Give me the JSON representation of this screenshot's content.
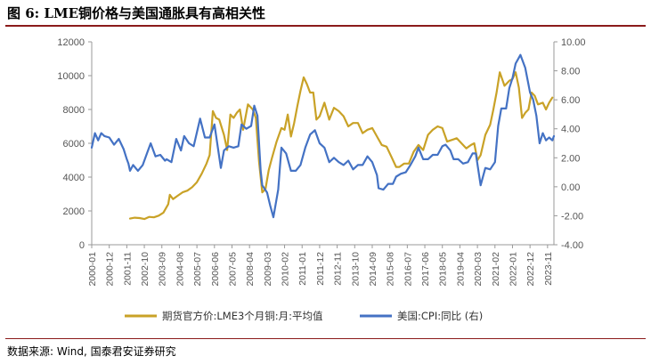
{
  "figure": {
    "title": "图 6:  LME铜价格与美国通胀具有高相关性",
    "source": "数据来源:  Wind, 国泰君安证券研究"
  },
  "chart_data": {
    "type": "line",
    "title": "",
    "x_ticks": [
      "2000-01",
      "2000-12",
      "2001-11",
      "2002-10",
      "2003-09",
      "2004-08",
      "2005-07",
      "2006-06",
      "2007-05",
      "2008-04",
      "2009-03",
      "2010-02",
      "2011-01",
      "2011-12",
      "2012-11",
      "2013-10",
      "2014-09",
      "2015-08",
      "2016-07",
      "2017-06",
      "2018-05",
      "2019-04",
      "2020-03",
      "2021-02",
      "2022-01",
      "2022-12",
      "2023-11"
    ],
    "y_left": {
      "min": 0,
      "max": 12000,
      "ticks": [
        0,
        2000,
        4000,
        6000,
        8000,
        10000,
        12000
      ],
      "tick_labels": [
        "0",
        "2000",
        "4000",
        "6000",
        "8000",
        "10000",
        "12000"
      ]
    },
    "y_right": {
      "min": -4,
      "max": 10,
      "ticks": [
        -4,
        -2,
        0,
        2,
        4,
        6,
        8,
        10
      ],
      "tick_labels": [
        "-4.00",
        "-2.00",
        "0.00",
        "2.00",
        "4.00",
        "6.00",
        "8.00",
        "10.00"
      ]
    },
    "grid": false,
    "legend_position": "bottom",
    "series": [
      {
        "name": "期货官方价:LME3个月铜:月:平均值",
        "axis": "left",
        "color": "#c9a227",
        "points": [
          [
            "2002-01",
            1550
          ],
          [
            "2002-04",
            1600
          ],
          [
            "2002-07",
            1580
          ],
          [
            "2002-10",
            1520
          ],
          [
            "2003-01",
            1650
          ],
          [
            "2003-04",
            1620
          ],
          [
            "2003-07",
            1720
          ],
          [
            "2003-10",
            1900
          ],
          [
            "2004-01",
            2400
          ],
          [
            "2004-02",
            2950
          ],
          [
            "2004-04",
            2700
          ],
          [
            "2004-07",
            2900
          ],
          [
            "2004-10",
            3100
          ],
          [
            "2005-01",
            3200
          ],
          [
            "2005-04",
            3400
          ],
          [
            "2005-07",
            3700
          ],
          [
            "2005-10",
            4200
          ],
          [
            "2006-01",
            4800
          ],
          [
            "2006-03",
            5300
          ],
          [
            "2006-05",
            7900
          ],
          [
            "2006-07",
            7500
          ],
          [
            "2006-09",
            7400
          ],
          [
            "2006-12",
            6500
          ],
          [
            "2007-02",
            5600
          ],
          [
            "2007-04",
            7700
          ],
          [
            "2007-06",
            7500
          ],
          [
            "2007-08",
            7800
          ],
          [
            "2007-10",
            8000
          ],
          [
            "2007-12",
            6800
          ],
          [
            "2008-03",
            8300
          ],
          [
            "2008-06",
            8000
          ],
          [
            "2008-08",
            7500
          ],
          [
            "2008-10",
            4900
          ],
          [
            "2008-12",
            3100
          ],
          [
            "2009-02",
            3300
          ],
          [
            "2009-04",
            4400
          ],
          [
            "2009-06",
            5100
          ],
          [
            "2009-09",
            6100
          ],
          [
            "2009-12",
            6900
          ],
          [
            "2010-02",
            6800
          ],
          [
            "2010-04",
            7700
          ],
          [
            "2010-06",
            6400
          ],
          [
            "2010-08",
            7200
          ],
          [
            "2010-10",
            8200
          ],
          [
            "2010-12",
            9100
          ],
          [
            "2011-02",
            9900
          ],
          [
            "2011-04",
            9500
          ],
          [
            "2011-06",
            9000
          ],
          [
            "2011-08",
            9000
          ],
          [
            "2011-10",
            7400
          ],
          [
            "2011-12",
            7600
          ],
          [
            "2012-03",
            8400
          ],
          [
            "2012-06",
            7400
          ],
          [
            "2012-09",
            8100
          ],
          [
            "2012-12",
            7900
          ],
          [
            "2013-03",
            7600
          ],
          [
            "2013-06",
            7000
          ],
          [
            "2013-09",
            7200
          ],
          [
            "2013-12",
            7200
          ],
          [
            "2014-03",
            6600
          ],
          [
            "2014-06",
            6800
          ],
          [
            "2014-09",
            6900
          ],
          [
            "2014-12",
            6400
          ],
          [
            "2015-03",
            5900
          ],
          [
            "2015-06",
            5800
          ],
          [
            "2015-09",
            5200
          ],
          [
            "2015-12",
            4600
          ],
          [
            "2016-02",
            4600
          ],
          [
            "2016-05",
            4800
          ],
          [
            "2016-08",
            4800
          ],
          [
            "2016-11",
            5500
          ],
          [
            "2017-02",
            5900
          ],
          [
            "2017-05",
            5600
          ],
          [
            "2017-08",
            6500
          ],
          [
            "2017-11",
            6800
          ],
          [
            "2018-02",
            7000
          ],
          [
            "2018-05",
            6900
          ],
          [
            "2018-08",
            6100
          ],
          [
            "2018-11",
            6200
          ],
          [
            "2019-02",
            6300
          ],
          [
            "2019-05",
            6000
          ],
          [
            "2019-08",
            5700
          ],
          [
            "2019-11",
            5900
          ],
          [
            "2020-01",
            6000
          ],
          [
            "2020-03",
            5000
          ],
          [
            "2020-05",
            5300
          ],
          [
            "2020-08",
            6500
          ],
          [
            "2020-11",
            7100
          ],
          [
            "2021-01",
            8000
          ],
          [
            "2021-03",
            9000
          ],
          [
            "2021-05",
            10200
          ],
          [
            "2021-08",
            9400
          ],
          [
            "2021-11",
            9700
          ],
          [
            "2022-01",
            9800
          ],
          [
            "2022-03",
            10200
          ],
          [
            "2022-05",
            9300
          ],
          [
            "2022-07",
            7500
          ],
          [
            "2022-09",
            7800
          ],
          [
            "2022-11",
            8000
          ],
          [
            "2023-01",
            9000
          ],
          [
            "2023-03",
            8800
          ],
          [
            "2023-05",
            8300
          ],
          [
            "2023-08",
            8400
          ],
          [
            "2023-10",
            8000
          ],
          [
            "2023-12",
            8400
          ],
          [
            "2024-02",
            8700
          ]
        ]
      },
      {
        "name": "美国:CPI:同比 (右)",
        "axis": "right",
        "color": "#4472c4",
        "points": [
          [
            "2000-01",
            2.7
          ],
          [
            "2000-03",
            3.7
          ],
          [
            "2000-05",
            3.2
          ],
          [
            "2000-07",
            3.7
          ],
          [
            "2000-09",
            3.5
          ],
          [
            "2000-12",
            3.4
          ],
          [
            "2001-03",
            2.9
          ],
          [
            "2001-06",
            3.3
          ],
          [
            "2001-09",
            2.6
          ],
          [
            "2001-11",
            1.9
          ],
          [
            "2001-12",
            1.6
          ],
          [
            "2002-01",
            1.1
          ],
          [
            "2002-03",
            1.5
          ],
          [
            "2002-06",
            1.1
          ],
          [
            "2002-09",
            1.5
          ],
          [
            "2002-12",
            2.4
          ],
          [
            "2003-02",
            3.0
          ],
          [
            "2003-05",
            2.1
          ],
          [
            "2003-08",
            2.2
          ],
          [
            "2003-11",
            1.8
          ],
          [
            "2003-12",
            1.9
          ],
          [
            "2004-03",
            1.7
          ],
          [
            "2004-06",
            3.3
          ],
          [
            "2004-09",
            2.5
          ],
          [
            "2004-11",
            3.5
          ],
          [
            "2005-02",
            3.0
          ],
          [
            "2005-05",
            2.8
          ],
          [
            "2005-09",
            4.7
          ],
          [
            "2005-12",
            3.4
          ],
          [
            "2006-03",
            3.4
          ],
          [
            "2006-06",
            4.3
          ],
          [
            "2006-10",
            1.3
          ],
          [
            "2006-12",
            2.5
          ],
          [
            "2007-03",
            2.8
          ],
          [
            "2007-06",
            2.7
          ],
          [
            "2007-09",
            2.8
          ],
          [
            "2007-11",
            4.3
          ],
          [
            "2008-02",
            4.0
          ],
          [
            "2008-05",
            4.2
          ],
          [
            "2008-07",
            5.6
          ],
          [
            "2008-09",
            4.9
          ],
          [
            "2008-11",
            1.1
          ],
          [
            "2008-12",
            0.1
          ],
          [
            "2009-03",
            -0.4
          ],
          [
            "2009-05",
            -1.3
          ],
          [
            "2009-07",
            -2.1
          ],
          [
            "2009-10",
            -0.2
          ],
          [
            "2009-12",
            2.7
          ],
          [
            "2010-03",
            2.3
          ],
          [
            "2010-06",
            1.1
          ],
          [
            "2010-09",
            1.1
          ],
          [
            "2010-12",
            1.5
          ],
          [
            "2011-03",
            2.7
          ],
          [
            "2011-06",
            3.6
          ],
          [
            "2011-09",
            3.9
          ],
          [
            "2011-12",
            3.0
          ],
          [
            "2012-03",
            2.7
          ],
          [
            "2012-06",
            1.7
          ],
          [
            "2012-09",
            2.0
          ],
          [
            "2012-12",
            1.7
          ],
          [
            "2013-03",
            1.5
          ],
          [
            "2013-06",
            1.8
          ],
          [
            "2013-09",
            1.2
          ],
          [
            "2013-12",
            1.5
          ],
          [
            "2014-03",
            1.5
          ],
          [
            "2014-06",
            2.1
          ],
          [
            "2014-09",
            1.7
          ],
          [
            "2014-12",
            0.8
          ],
          [
            "2015-01",
            -0.1
          ],
          [
            "2015-04",
            -0.2
          ],
          [
            "2015-07",
            0.2
          ],
          [
            "2015-10",
            0.2
          ],
          [
            "2015-12",
            0.7
          ],
          [
            "2016-03",
            0.9
          ],
          [
            "2016-06",
            1.0
          ],
          [
            "2016-09",
            1.5
          ],
          [
            "2016-12",
            2.1
          ],
          [
            "2017-02",
            2.7
          ],
          [
            "2017-05",
            1.9
          ],
          [
            "2017-08",
            1.9
          ],
          [
            "2017-11",
            2.2
          ],
          [
            "2018-02",
            2.2
          ],
          [
            "2018-05",
            2.8
          ],
          [
            "2018-07",
            2.9
          ],
          [
            "2018-10",
            2.5
          ],
          [
            "2018-12",
            1.9
          ],
          [
            "2019-03",
            1.9
          ],
          [
            "2019-06",
            1.6
          ],
          [
            "2019-09",
            1.7
          ],
          [
            "2019-12",
            2.3
          ],
          [
            "2020-02",
            2.3
          ],
          [
            "2020-05",
            0.1
          ],
          [
            "2020-08",
            1.3
          ],
          [
            "2020-11",
            1.2
          ],
          [
            "2021-02",
            1.7
          ],
          [
            "2021-04",
            4.2
          ],
          [
            "2021-06",
            5.4
          ],
          [
            "2021-09",
            5.4
          ],
          [
            "2021-11",
            6.8
          ],
          [
            "2022-01",
            7.5
          ],
          [
            "2022-03",
            8.5
          ],
          [
            "2022-06",
            9.1
          ],
          [
            "2022-09",
            8.2
          ],
          [
            "2022-12",
            6.5
          ],
          [
            "2023-02",
            6.0
          ],
          [
            "2023-04",
            4.9
          ],
          [
            "2023-06",
            3.0
          ],
          [
            "2023-08",
            3.7
          ],
          [
            "2023-10",
            3.2
          ],
          [
            "2023-12",
            3.4
          ],
          [
            "2024-02",
            3.2
          ],
          [
            "2024-03",
            3.5
          ]
        ]
      }
    ]
  }
}
